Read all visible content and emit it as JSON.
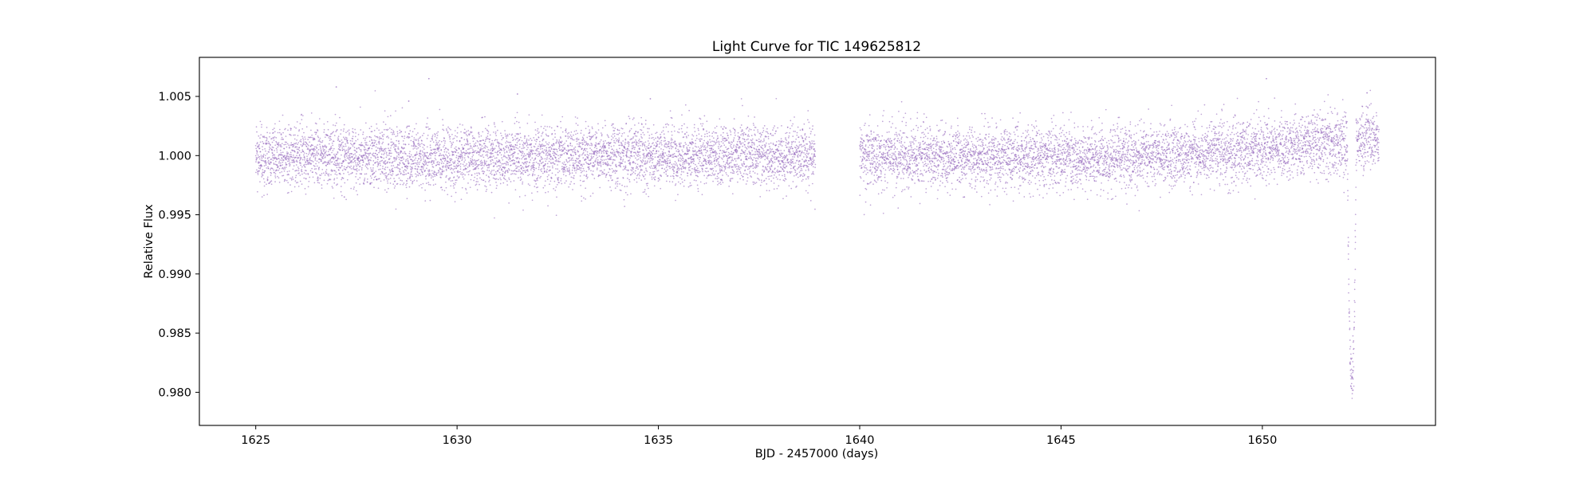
{
  "chart_data": {
    "type": "scatter",
    "title": "Light Curve for TIC 149625812",
    "xlabel": "BJD - 2457000 (days)",
    "ylabel": "Relative Flux",
    "xlim": [
      1623.6,
      1654.3
    ],
    "ylim": [
      0.9772,
      1.0083
    ],
    "xticks": [
      1625,
      1630,
      1635,
      1640,
      1645,
      1650
    ],
    "xtick_labels": [
      "1625",
      "1630",
      "1635",
      "1640",
      "1645",
      "1650"
    ],
    "yticks": [
      0.98,
      0.985,
      0.99,
      0.995,
      1.0,
      1.005
    ],
    "ytick_labels": [
      "0.980",
      "0.985",
      "0.990",
      "0.995",
      "1.000",
      "1.005"
    ],
    "grid": false,
    "legend": "none",
    "marker_color": "#9467bd",
    "series": [
      {
        "segments": [
          {
            "x_start": 1625.0,
            "x_end": 1638.9
          },
          {
            "x_start": 1640.0,
            "x_end": 1652.9
          }
        ],
        "baseline": [
          {
            "x": 1625.0,
            "y": 1.0
          },
          {
            "x": 1627.0,
            "y": 1.0
          },
          {
            "x": 1629.0,
            "y": 0.9998
          },
          {
            "x": 1632.0,
            "y": 0.9999
          },
          {
            "x": 1635.0,
            "y": 1.0
          },
          {
            "x": 1638.9,
            "y": 1.0001
          },
          {
            "x": 1640.0,
            "y": 1.0
          },
          {
            "x": 1643.0,
            "y": 0.9999
          },
          {
            "x": 1646.0,
            "y": 0.9998
          },
          {
            "x": 1648.0,
            "y": 1.0
          },
          {
            "x": 1650.0,
            "y": 1.0006
          },
          {
            "x": 1652.0,
            "y": 1.0012
          },
          {
            "x": 1652.9,
            "y": 1.0015
          }
        ],
        "scatter_sigma": 0.0013,
        "transit": {
          "t_mid": 1652.22,
          "duration": 0.22,
          "min_flux": 0.9795
        },
        "outliers": [
          {
            "x": 1627.0,
            "y": 1.0058
          },
          {
            "x": 1629.3,
            "y": 1.0065
          },
          {
            "x": 1631.5,
            "y": 1.0052
          },
          {
            "x": 1634.8,
            "y": 1.0048
          },
          {
            "x": 1650.1,
            "y": 1.0065
          },
          {
            "x": 1652.6,
            "y": 1.0053
          },
          {
            "x": 1628.8,
            "y": 1.0046
          },
          {
            "x": 1627.2,
            "y": 0.9965
          },
          {
            "x": 1642.6,
            "y": 0.9965
          }
        ]
      }
    ]
  }
}
